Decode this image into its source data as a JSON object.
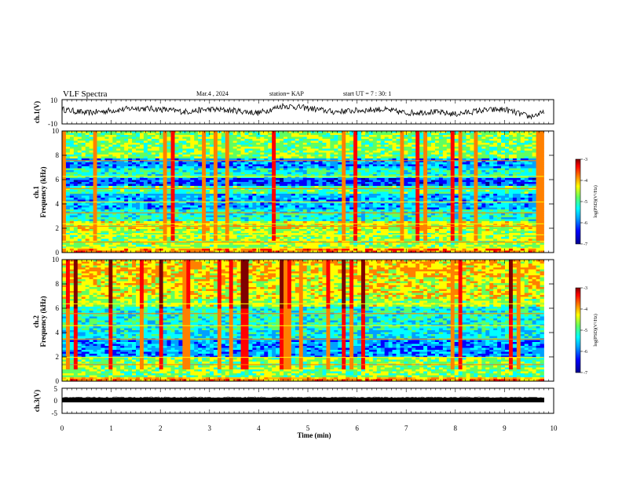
{
  "header": {
    "title": "VLF Spectra",
    "date": "Mar.4 , 2024",
    "station": "station= KAP",
    "start": "start UT = 7 : 30: 1"
  },
  "chart_data": [
    {
      "type": "line",
      "panel": "ch1-waveform",
      "ylabel": "ch.1(V)",
      "ylim": [
        -10,
        10
      ],
      "yticks": [
        "10",
        "-10"
      ],
      "xlim": [
        0,
        10
      ],
      "x": [
        0,
        0.5,
        1,
        1.5,
        2,
        2.5,
        3,
        3.5,
        4,
        4.5,
        5,
        5.5,
        6,
        6.5,
        7,
        7.5,
        8,
        8.5,
        9,
        9.5,
        9.8
      ],
      "values": [
        2,
        -1,
        1,
        3,
        2,
        0,
        2,
        1,
        -1,
        5,
        3,
        0,
        1,
        2,
        -1,
        0,
        -2,
        1,
        2,
        -4,
        -1
      ]
    },
    {
      "type": "heatmap",
      "panel": "ch1-spectrogram",
      "ylabel": "ch.1 Frequency (kHz)",
      "ylim": [
        0,
        10
      ],
      "yticks": [
        "0",
        "2",
        "4",
        "6",
        "8",
        "10"
      ],
      "xlim": [
        0,
        10
      ],
      "colorbar": {
        "label": "log(PSD)(V²/Hz)",
        "range": [
          -7,
          -3
        ],
        "ticks": [
          "-3",
          "-4",
          "-5",
          "-6",
          "-7"
        ]
      }
    },
    {
      "type": "heatmap",
      "panel": "ch2-spectrogram",
      "ylabel": "ch.2 Frequency (kHz)",
      "ylim": [
        0,
        10
      ],
      "yticks": [
        "0",
        "2",
        "4",
        "6",
        "8",
        "10"
      ],
      "xlim": [
        0,
        10
      ],
      "colorbar": {
        "label": "log(PSD)(V²/Hz)",
        "range": [
          -7,
          -3
        ],
        "ticks": [
          "-3",
          "-4",
          "-5",
          "-6",
          "-7"
        ]
      }
    },
    {
      "type": "line",
      "panel": "ch3-waveform",
      "ylabel": "ch.3(V)",
      "ylim": [
        -5,
        5
      ],
      "yticks": [
        "5",
        "0",
        "-5"
      ],
      "xlim": [
        0,
        10
      ],
      "x": [
        0,
        9.8
      ],
      "values": [
        -1.5,
        -1.5
      ]
    }
  ],
  "xaxis": {
    "label": "Time (min)",
    "ticks": [
      "0",
      "1",
      "2",
      "3",
      "4",
      "5",
      "6",
      "7",
      "8",
      "9",
      "10"
    ]
  },
  "colors": {
    "trace": "#000000",
    "scale": [
      "#000090",
      "#0000ff",
      "#00a0ff",
      "#00ffff",
      "#60ff60",
      "#ffff00",
      "#ff8000",
      "#ff0000",
      "#800000"
    ]
  }
}
